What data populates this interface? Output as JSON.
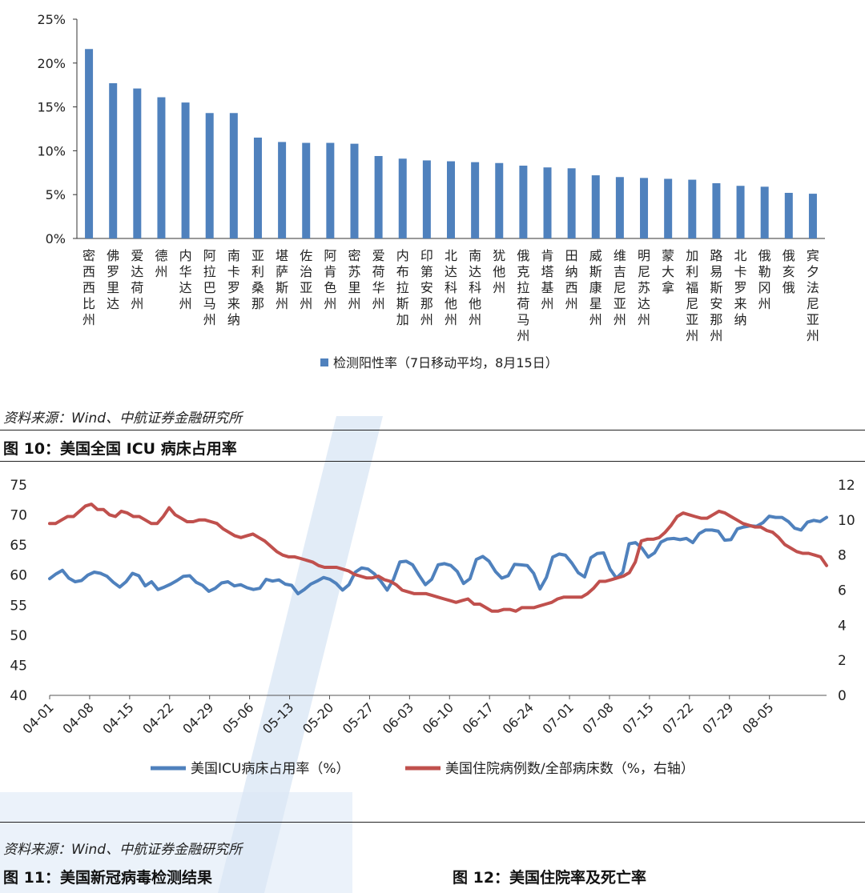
{
  "chart_data": [
    {
      "type": "bar",
      "title": "",
      "categories": [
        "密西西比州",
        "佛罗里达",
        "爱达荷州",
        "德州",
        "内华达州",
        "阿拉巴马州",
        "南卡罗来纳",
        "亚利桑那",
        "堪萨斯州",
        "佐治亚州",
        "阿肯色州",
        "密苏里州",
        "爱荷华州",
        "内布拉斯加",
        "印第安那州",
        "北达科他州",
        "南达科他州",
        "犹他州",
        "俄克拉荷马州",
        "肯塔基州",
        "田纳西州",
        "威斯康星州",
        "维吉尼亚州",
        "明尼苏达州",
        "蒙大拿",
        "加利福尼亚州",
        "路易斯安那州",
        "北卡罗来纳",
        "俄勒冈州",
        "俄亥俄",
        "宾夕法尼亚州"
      ],
      "series": [
        {
          "name": "检测阳性率（7日移动平均，8月15日）",
          "color": "#4f81bd",
          "values": [
            21.6,
            17.7,
            17.1,
            16.1,
            15.5,
            14.3,
            14.3,
            11.5,
            11.0,
            10.9,
            10.9,
            10.8,
            9.4,
            9.1,
            8.9,
            8.8,
            8.7,
            8.6,
            8.3,
            8.1,
            8.0,
            7.2,
            7.0,
            6.9,
            6.8,
            6.7,
            6.3,
            6.0,
            5.9,
            5.2,
            5.1
          ]
        }
      ],
      "yticks": [
        "0%",
        "5%",
        "10%",
        "15%",
        "20%",
        "25%"
      ],
      "ylim": [
        0,
        25
      ],
      "xlabel": "",
      "ylabel": "",
      "legend_position": "bottom"
    },
    {
      "type": "line",
      "title": "图 10：美国全国 ICU 病床占用率",
      "x_ticks": [
        "04-01",
        "04-08",
        "04-15",
        "04-22",
        "04-29",
        "05-06",
        "05-13",
        "05-20",
        "05-27",
        "06-03",
        "06-10",
        "06-17",
        "06-24",
        "07-01",
        "07-08",
        "07-15",
        "07-22",
        "07-29",
        "08-05"
      ],
      "x_range": [
        "04-01",
        "08-15"
      ],
      "series": [
        {
          "name": "美国ICU病床占用率（%）",
          "axis": "left",
          "color": "#4f81bd",
          "values": [
            59.4,
            60.2,
            60.8,
            59.5,
            58.9,
            59.1,
            60.0,
            60.5,
            60.3,
            59.8,
            58.8,
            58.0,
            58.9,
            60.3,
            59.9,
            58.2,
            58.9,
            57.6,
            58.0,
            58.5,
            59.1,
            59.8,
            59.9,
            58.8,
            58.3,
            57.3,
            57.8,
            58.7,
            58.9,
            58.2,
            58.4,
            57.9,
            57.6,
            57.8,
            59.3,
            59.0,
            59.2,
            58.5,
            58.3,
            56.9,
            57.6,
            58.5,
            59.0,
            59.6,
            59.3,
            58.6,
            57.5,
            58.4,
            60.5,
            61.2,
            61.0,
            60.2,
            59.0,
            57.5,
            59.3,
            62.2,
            62.3,
            61.7,
            60.0,
            58.4,
            59.3,
            61.7,
            61.9,
            61.6,
            60.6,
            58.6,
            59.4,
            62.6,
            63.1,
            62.3,
            60.6,
            59.5,
            59.9,
            61.8,
            61.7,
            61.6,
            60.3,
            57.7,
            59.6,
            63.0,
            63.5,
            63.3,
            62.0,
            60.4,
            59.7,
            62.9,
            63.6,
            63.7,
            61.0,
            59.5,
            60.5,
            65.2,
            65.4,
            64.5,
            63.0,
            63.7,
            65.5,
            66.0,
            66.1,
            65.9,
            66.1,
            65.4,
            66.9,
            67.5,
            67.5,
            67.3,
            65.8,
            65.9,
            67.7,
            68.0,
            68.2,
            68.1,
            68.7,
            69.8,
            69.6,
            69.6,
            68.9,
            67.8,
            67.5,
            68.8,
            69.1,
            68.9,
            69.6
          ]
        },
        {
          "name": "美国住院病例数/全部病床数（%，右轴）",
          "axis": "right",
          "color": "#c0504d",
          "values": [
            9.8,
            9.8,
            10.0,
            10.2,
            10.2,
            10.5,
            10.8,
            10.9,
            10.6,
            10.6,
            10.3,
            10.2,
            10.5,
            10.4,
            10.2,
            10.2,
            10.0,
            9.8,
            9.8,
            10.2,
            10.7,
            10.3,
            10.1,
            9.9,
            9.9,
            10.0,
            10.0,
            9.9,
            9.8,
            9.5,
            9.3,
            9.1,
            9.0,
            9.1,
            9.2,
            9.0,
            8.8,
            8.5,
            8.2,
            8.0,
            7.9,
            7.9,
            7.8,
            7.7,
            7.6,
            7.4,
            7.3,
            7.3,
            7.3,
            7.2,
            7.1,
            6.9,
            6.8,
            6.7,
            6.7,
            6.8,
            6.6,
            6.5,
            6.3,
            6.0,
            5.9,
            5.8,
            5.8,
            5.8,
            5.7,
            5.6,
            5.5,
            5.4,
            5.3,
            5.4,
            5.5,
            5.2,
            5.2,
            5.0,
            4.8,
            4.8,
            4.9,
            4.9,
            4.8,
            5.0,
            5.0,
            5.0,
            5.1,
            5.2,
            5.3,
            5.5,
            5.6,
            5.6,
            5.6,
            5.6,
            5.8,
            6.1,
            6.5,
            6.5,
            6.6,
            6.7,
            6.8,
            7.0,
            7.6,
            8.8,
            8.9,
            8.9,
            9.0,
            9.3,
            9.7,
            10.2,
            10.4,
            10.3,
            10.2,
            10.1,
            10.1,
            10.3,
            10.5,
            10.4,
            10.2,
            10.0,
            9.8,
            9.7,
            9.6,
            9.6,
            9.4,
            9.3,
            9.0,
            8.6,
            8.4,
            8.2,
            8.1,
            8.1,
            8.0,
            7.9,
            7.4
          ]
        }
      ],
      "yticks_left": [
        "40",
        "45",
        "50",
        "55",
        "60",
        "65",
        "70",
        "75"
      ],
      "ylim_left": [
        40,
        75
      ],
      "yticks_right": [
        "0",
        "2",
        "4",
        "6",
        "8",
        "10",
        "12"
      ],
      "ylim_right": [
        0,
        12
      ],
      "legend_position": "bottom"
    }
  ],
  "captions": {
    "source_1": "资料来源：Wind、中航证券金融研究所",
    "fig10_title": "图 10：美国全国 ICU 病床占用率",
    "source_2": "资料来源：Wind、中航证券金融研究所",
    "fig11_title": "图 11：美国新冠病毒检测结果",
    "fig12_title": "图 12：美国住院率及死亡率"
  },
  "colors": {
    "bar": "#4f81bd",
    "icu": "#4f81bd",
    "hosp": "#c0504d",
    "watermark": "#c9dcf0"
  }
}
